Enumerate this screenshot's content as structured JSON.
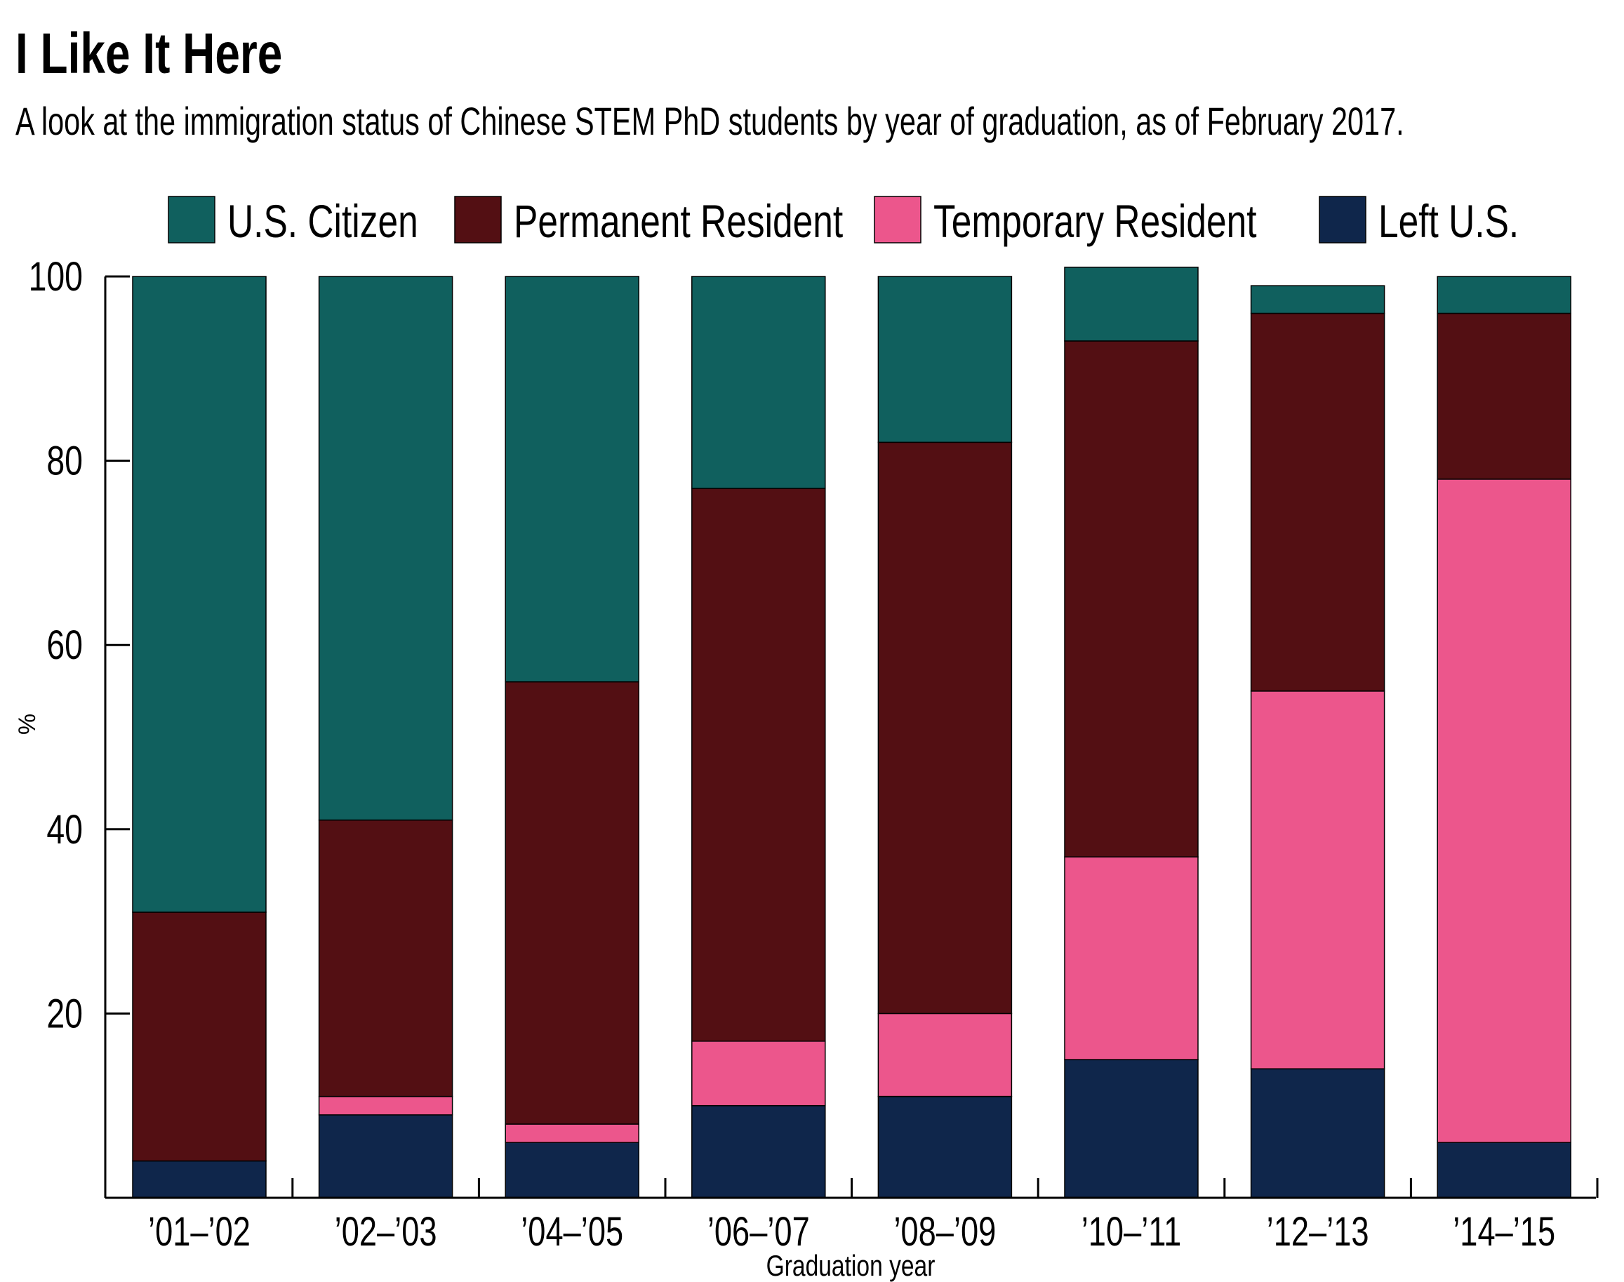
{
  "chart_data": {
    "type": "bar",
    "stacked": true,
    "title": "I Like It Here",
    "subtitle": "A look at the immigration status of Chinese STEM PhD students by year of graduation, as of February 2017.",
    "xlabel": "Graduation year",
    "ylabel": "%",
    "ylim": [
      0,
      100
    ],
    "yticks": [
      "20",
      "40",
      "60",
      "80",
      "100"
    ],
    "ytick_values": [
      20,
      40,
      60,
      80,
      100
    ],
    "grid": false,
    "legend_position": "top",
    "categories": [
      "’01–’02",
      "’02–’03",
      "’04–’05",
      "’06–’07",
      "’08–’09",
      "’10–’11",
      "’12–’13",
      "’14–’15"
    ],
    "series": [
      {
        "name": "Left U.S.",
        "color": "#0f264b",
        "values": [
          4,
          9,
          6,
          10,
          11,
          15,
          14,
          6
        ]
      },
      {
        "name": "Temporary Resident",
        "color": "#ec568c",
        "values": [
          0,
          2,
          2,
          7,
          9,
          22,
          41,
          72
        ]
      },
      {
        "name": "Permanent Resident",
        "color": "#530f13",
        "values": [
          27,
          30,
          48,
          60,
          62,
          56,
          41,
          18
        ]
      },
      {
        "name": "U.S. Citizen",
        "color": "#10605e",
        "values": [
          69,
          59,
          44,
          23,
          18,
          8,
          3,
          4
        ]
      }
    ],
    "legend_order": [
      "U.S. Citizen",
      "Permanent Resident",
      "Temporary Resident",
      "Left U.S."
    ]
  }
}
